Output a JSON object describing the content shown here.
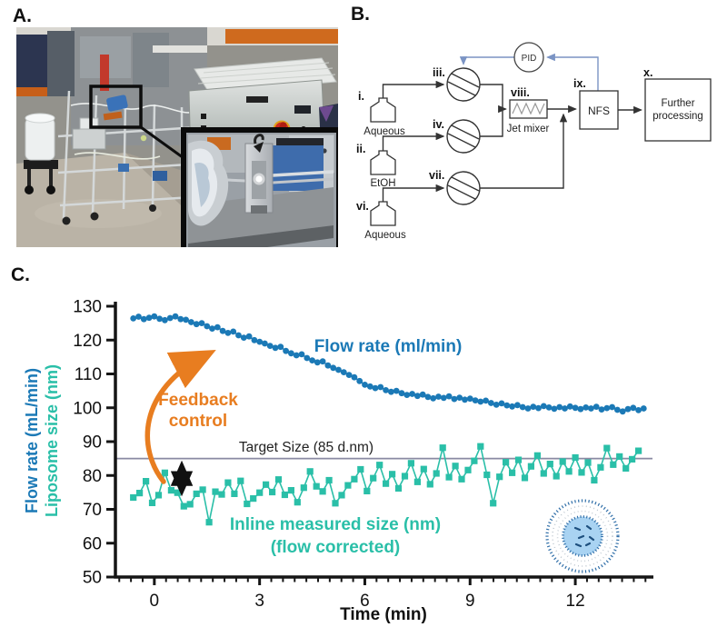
{
  "panel_a": {
    "label": "A."
  },
  "panel_b": {
    "label": "B.",
    "pid": "PID",
    "nfs": "NFS",
    "further_1": "Further",
    "further_2": "processing",
    "jet_mixer": "Jet mixer",
    "bottle_i_num": "i.",
    "bottle_i_name": "Aqueous",
    "bottle_ii_num": "ii.",
    "bottle_ii_name": "EtOH",
    "bottle_vi_num": "vi.",
    "bottle_vi_name": "Aqueous",
    "pump_iii_num": "iii.",
    "pump_iv_num": "iv.",
    "pump_vii_num": "vii.",
    "mixer_num": "viii.",
    "nfs_num": "ix.",
    "further_num": "x."
  },
  "panel_c": {
    "label": "C."
  },
  "colors": {
    "flow_blue": "#1b79b6",
    "size_teal": "#2abfa8",
    "orange": "#e87d20",
    "target_gray": "#8a8aa2",
    "feedback_blue": "#7b94c4",
    "axis_black": "#151515"
  },
  "chart_data": {
    "type": "scatter",
    "title": "",
    "xlabel": "Time (min)",
    "ylabel_flow": "Flow rate (mL/min)",
    "ylabel_size": "Liposome size (nm)",
    "x_ticks": [
      0,
      3,
      6,
      9,
      12
    ],
    "y_ticks": [
      50,
      60,
      70,
      80,
      90,
      100,
      110,
      120,
      130
    ],
    "xlim": [
      -1.11,
      14.2
    ],
    "ylim": [
      50,
      130
    ],
    "grid": false,
    "legend": "in-plot text labels",
    "target_line": {
      "value": 85,
      "label": "Target Size (85 d.nm)",
      "color": "#8a8aa2"
    },
    "annotations": {
      "flow_series_label": "Flow rate (ml/min)",
      "size_series_label_1": "Inline measured size (nm)",
      "size_series_label_2": "(flow corrected)",
      "feedback_1": "Feedback",
      "feedback_2": "control"
    },
    "series": [
      {
        "name": "Flow rate (ml/min)",
        "color": "#1b79b6",
        "marker": "circle",
        "points": [
          [
            -0.6,
            126.4
          ],
          [
            -0.45,
            126.9
          ],
          [
            -0.3,
            126.2
          ],
          [
            -0.15,
            126.6
          ],
          [
            0,
            127
          ],
          [
            0.15,
            126.3
          ],
          [
            0.3,
            125.9
          ],
          [
            0.45,
            126.5
          ],
          [
            0.6,
            127
          ],
          [
            0.75,
            126.2
          ],
          [
            0.9,
            126
          ],
          [
            1.05,
            125.3
          ],
          [
            1.2,
            124.7
          ],
          [
            1.35,
            125
          ],
          [
            1.5,
            124.1
          ],
          [
            1.65,
            123.4
          ],
          [
            1.8,
            123.8
          ],
          [
            1.95,
            122.7
          ],
          [
            2.1,
            122.1
          ],
          [
            2.25,
            122.5
          ],
          [
            2.4,
            121.4
          ],
          [
            2.55,
            120.7
          ],
          [
            2.7,
            121.1
          ],
          [
            2.85,
            120
          ],
          [
            3,
            119.5
          ],
          [
            3.15,
            119
          ],
          [
            3.3,
            118.3
          ],
          [
            3.45,
            117.7
          ],
          [
            3.6,
            118
          ],
          [
            3.75,
            116.8
          ],
          [
            3.9,
            116.1
          ],
          [
            4.05,
            115.5
          ],
          [
            4.2,
            115.8
          ],
          [
            4.35,
            114.7
          ],
          [
            4.5,
            114
          ],
          [
            4.65,
            113.4
          ],
          [
            4.8,
            113.7
          ],
          [
            4.95,
            112.5
          ],
          [
            5.1,
            111.8
          ],
          [
            5.25,
            111.2
          ],
          [
            5.4,
            110.5
          ],
          [
            5.55,
            109.7
          ],
          [
            5.7,
            109
          ],
          [
            5.85,
            107.9
          ],
          [
            6,
            106.8
          ],
          [
            6.15,
            106.3
          ],
          [
            6.3,
            105.8
          ],
          [
            6.45,
            106.1
          ],
          [
            6.6,
            105.2
          ],
          [
            6.75,
            104.7
          ],
          [
            6.9,
            105
          ],
          [
            7.05,
            104.3
          ],
          [
            7.2,
            103.8
          ],
          [
            7.35,
            104.1
          ],
          [
            7.5,
            103.5
          ],
          [
            7.65,
            103.9
          ],
          [
            7.8,
            103.2
          ],
          [
            7.95,
            102.8
          ],
          [
            8.1,
            103.3
          ],
          [
            8.25,
            102.9
          ],
          [
            8.4,
            103.4
          ],
          [
            8.55,
            102.6
          ],
          [
            8.7,
            103
          ],
          [
            8.85,
            102.4
          ],
          [
            9,
            102.7
          ],
          [
            9.15,
            102.2
          ],
          [
            9.3,
            101.8
          ],
          [
            9.45,
            102.1
          ],
          [
            9.6,
            101.4
          ],
          [
            9.75,
            100.9
          ],
          [
            9.9,
            101.3
          ],
          [
            10.05,
            100.7
          ],
          [
            10.2,
            100.4
          ],
          [
            10.35,
            100.8
          ],
          [
            10.5,
            100.2
          ],
          [
            10.65,
            99.8
          ],
          [
            10.8,
            100.3
          ],
          [
            10.95,
            99.9
          ],
          [
            11.1,
            100.5
          ],
          [
            11.25,
            100.1
          ],
          [
            11.4,
            99.7
          ],
          [
            11.55,
            100.2
          ],
          [
            11.7,
            99.8
          ],
          [
            11.85,
            100.4
          ],
          [
            12,
            100
          ],
          [
            12.15,
            99.6
          ],
          [
            12.3,
            100.1
          ],
          [
            12.45,
            99.8
          ],
          [
            12.6,
            100.3
          ],
          [
            12.75,
            99.5
          ],
          [
            12.9,
            99.9
          ],
          [
            13.05,
            100.2
          ],
          [
            13.2,
            99.4
          ],
          [
            13.35,
            98.9
          ],
          [
            13.5,
            99.6
          ],
          [
            13.65,
            100
          ],
          [
            13.8,
            99.3
          ],
          [
            13.95,
            99.8
          ]
        ]
      },
      {
        "name": "Inline measured size (nm) (flow corrected)",
        "color": "#2abfa8",
        "marker": "square",
        "points": [
          [
            -0.6,
            73.5
          ],
          [
            -0.42,
            74.8
          ],
          [
            -0.24,
            78.3
          ],
          [
            -0.06,
            71.9
          ],
          [
            0.12,
            74.2
          ],
          [
            0.3,
            80.8
          ],
          [
            0.48,
            75.6
          ],
          [
            0.66,
            74.9
          ],
          [
            0.84,
            70.9
          ],
          [
            1.02,
            71.5
          ],
          [
            1.2,
            74.6
          ],
          [
            1.38,
            75.8
          ],
          [
            1.56,
            66.2
          ],
          [
            1.74,
            75.2
          ],
          [
            1.92,
            74.4
          ],
          [
            2.1,
            77.9
          ],
          [
            2.28,
            74.6
          ],
          [
            2.46,
            78.4
          ],
          [
            2.64,
            71.6
          ],
          [
            2.82,
            73.2
          ],
          [
            3,
            74.9
          ],
          [
            3.18,
            77.3
          ],
          [
            3.36,
            75.1
          ],
          [
            3.54,
            78.8
          ],
          [
            3.72,
            74.3
          ],
          [
            3.9,
            75.6
          ],
          [
            4.08,
            72.1
          ],
          [
            4.26,
            76.4
          ],
          [
            4.44,
            81.2
          ],
          [
            4.62,
            76.8
          ],
          [
            4.8,
            75.3
          ],
          [
            4.98,
            78.6
          ],
          [
            5.16,
            71.8
          ],
          [
            5.34,
            74.2
          ],
          [
            5.52,
            77.1
          ],
          [
            5.7,
            78.9
          ],
          [
            5.88,
            81.8
          ],
          [
            6.06,
            75.4
          ],
          [
            6.24,
            79.2
          ],
          [
            6.42,
            83.1
          ],
          [
            6.6,
            77.6
          ],
          [
            6.78,
            80.4
          ],
          [
            6.96,
            76.2
          ],
          [
            7.14,
            79.8
          ],
          [
            7.32,
            83.6
          ],
          [
            7.5,
            78.1
          ],
          [
            7.68,
            81.9
          ],
          [
            7.86,
            77.4
          ],
          [
            8.04,
            80.6
          ],
          [
            8.22,
            88.2
          ],
          [
            8.4,
            79.5
          ],
          [
            8.58,
            82.8
          ],
          [
            8.76,
            78.9
          ],
          [
            8.94,
            81.6
          ],
          [
            9.12,
            84.3
          ],
          [
            9.3,
            88.6
          ],
          [
            9.48,
            80.2
          ],
          [
            9.66,
            71.8
          ],
          [
            9.84,
            79.6
          ],
          [
            10.02,
            83.9
          ],
          [
            10.2,
            80.8
          ],
          [
            10.38,
            84.6
          ],
          [
            10.56,
            79.3
          ],
          [
            10.74,
            82.7
          ],
          [
            10.92,
            85.9
          ],
          [
            11.1,
            80.6
          ],
          [
            11.28,
            83.4
          ],
          [
            11.46,
            79.8
          ],
          [
            11.64,
            84.1
          ],
          [
            11.82,
            81.2
          ],
          [
            12,
            85.3
          ],
          [
            12.18,
            80.9
          ],
          [
            12.36,
            83.8
          ],
          [
            12.54,
            78.6
          ],
          [
            12.72,
            82.4
          ],
          [
            12.9,
            88.1
          ],
          [
            13.08,
            83.2
          ],
          [
            13.26,
            85.6
          ],
          [
            13.44,
            82.1
          ],
          [
            13.62,
            84.8
          ],
          [
            13.8,
            87.3
          ]
        ]
      }
    ]
  }
}
